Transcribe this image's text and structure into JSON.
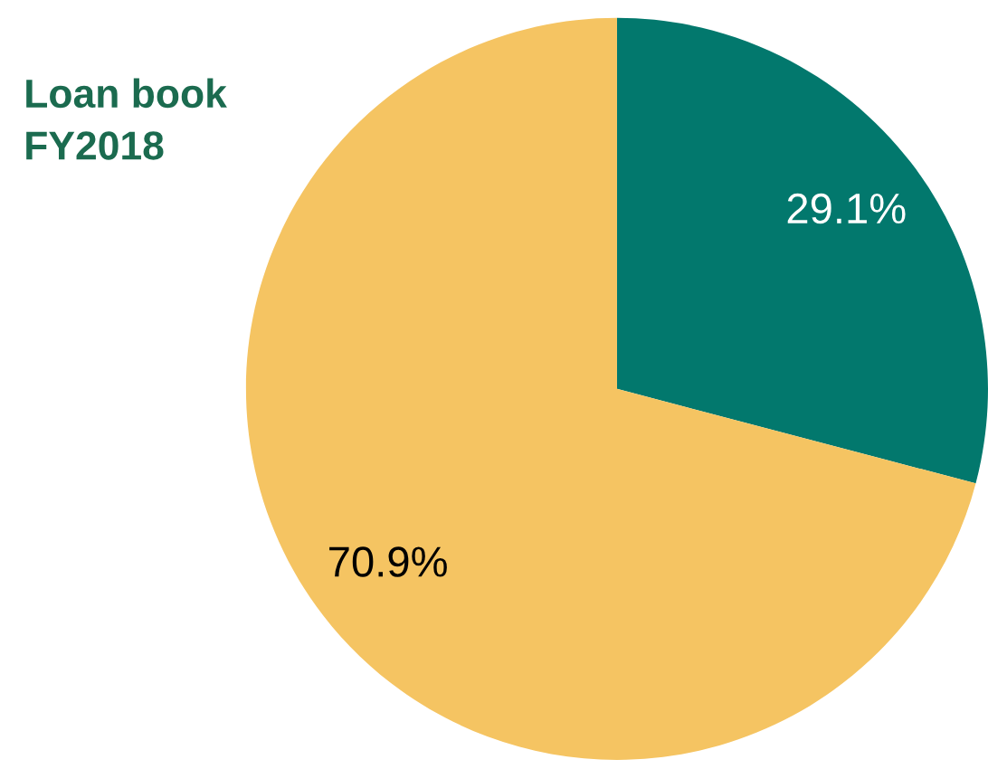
{
  "chart_data": {
    "type": "pie",
    "title": "Loan book\nFY2018",
    "categories": [
      null,
      null
    ],
    "values": [
      29.1,
      70.9
    ],
    "colors": [
      "#02786d",
      "#f5c462"
    ],
    "value_labels": [
      "29.1%",
      "70.9%"
    ]
  }
}
